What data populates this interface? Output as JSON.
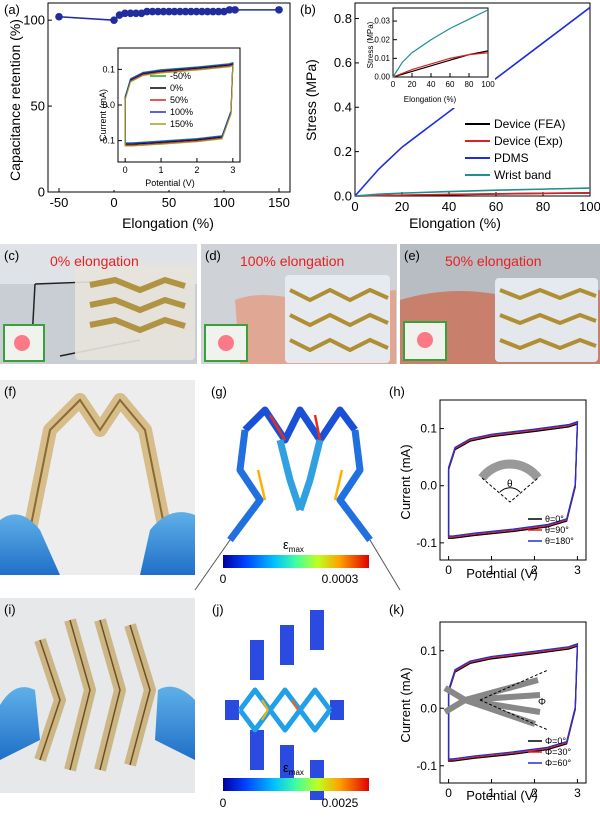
{
  "panels": {
    "a": {
      "label": "(a)",
      "chart_data": {
        "type": "scatter",
        "ylabel": "Capacitance retention (%)",
        "xlabel": "Elongation (%)",
        "xlim": [
          -60,
          160
        ],
        "ylim": [
          0,
          110
        ],
        "xticks": [
          -50,
          0,
          50,
          100,
          150
        ],
        "yticks": [
          0,
          50,
          100
        ],
        "x": [
          -50,
          0,
          5,
          10,
          15,
          20,
          25,
          30,
          35,
          40,
          45,
          50,
          55,
          60,
          65,
          70,
          75,
          80,
          85,
          90,
          95,
          100,
          105,
          110,
          150
        ],
        "y": [
          102,
          100,
          103,
          104,
          104,
          104,
          104,
          105,
          105,
          105,
          105,
          105,
          105,
          105,
          105,
          105,
          105,
          105,
          105,
          105,
          105,
          105,
          106,
          106,
          106
        ],
        "color": "#1f2d9e",
        "inset": {
          "xlabel": "Potential (V)",
          "ylabel": "Current (mA)",
          "xticks": [
            0,
            1,
            2,
            3
          ],
          "yticks": [
            -0.1,
            0.0,
            0.1
          ],
          "xlim": [
            -0.2,
            3.2
          ],
          "ylim": [
            -0.16,
            0.16
          ],
          "legend": [
            "-50%",
            "0%",
            "50%",
            "100%",
            "150%"
          ],
          "legend_colors": [
            "#2e9e2e",
            "#000000",
            "#e02020",
            "#1f2de0",
            "#a0a020"
          ]
        }
      }
    },
    "b": {
      "label": "(b)",
      "chart_data": {
        "type": "line",
        "ylabel": "Stress (MPa)",
        "xlabel": "Elongation (%)",
        "xlim": [
          0,
          100
        ],
        "ylim": [
          0,
          0.87
        ],
        "xticks": [
          0,
          20,
          40,
          60,
          80,
          100
        ],
        "yticks": [
          0.0,
          0.2,
          0.4,
          0.6,
          0.8
        ],
        "series": [
          {
            "name": "Device (FEA)",
            "color": "#000000",
            "x": [
              0,
              20,
              40,
              60,
              80,
              100
            ],
            "y": [
              0,
              0.003,
              0.006,
              0.009,
              0.012,
              0.014
            ]
          },
          {
            "name": "Device (Exp)",
            "color": "#e02020",
            "x": [
              0,
              20,
              40,
              60,
              80,
              100
            ],
            "y": [
              0,
              0.004,
              0.007,
              0.01,
              0.012,
              0.013
            ]
          },
          {
            "name": "PDMS",
            "color": "#1f2de0",
            "x": [
              0,
              10,
              20,
              30,
              40,
              50,
              60,
              70,
              80,
              90,
              100
            ],
            "y": [
              0,
              0.12,
              0.22,
              0.3,
              0.38,
              0.46,
              0.53,
              0.61,
              0.69,
              0.77,
              0.85
            ]
          },
          {
            "name": "Wrist band",
            "color": "#1e9090",
            "x": [
              0,
              10,
              20,
              40,
              60,
              80,
              100
            ],
            "y": [
              0,
              0.008,
              0.013,
              0.02,
              0.026,
              0.031,
              0.036
            ]
          }
        ],
        "inset": {
          "xlabel": "Elongation (%)",
          "ylabel": "Stress (MPa)",
          "xticks": [
            0,
            20,
            40,
            60,
            80,
            100
          ],
          "yticks": [
            0.0,
            0.01,
            0.02,
            0.03
          ],
          "ylim": [
            0,
            0.037
          ]
        }
      }
    },
    "c": {
      "label": "(c)",
      "caption": "0% elongation"
    },
    "d": {
      "label": "(d)",
      "caption": "100% elongation"
    },
    "e": {
      "label": "(e)",
      "caption": "50% elongation"
    },
    "f": {
      "label": "(f)"
    },
    "g": {
      "label": "(g)",
      "colorbar_title": "ε",
      "colorbar_sub": "max",
      "cb_min": "0",
      "cb_max": "0.0003"
    },
    "h": {
      "label": "(h)",
      "chart_data": {
        "type": "line",
        "xlabel": "Potential (V)",
        "ylabel": "Current (mA)",
        "xticks": [
          0,
          1,
          2,
          3
        ],
        "yticks": [
          -0.1,
          0.0,
          0.1
        ],
        "xlim": [
          -0.2,
          3.2
        ],
        "ylim": [
          -0.13,
          0.15
        ],
        "legend": [
          "θ=0°",
          "θ=90°",
          "θ=180°"
        ],
        "legend_colors": [
          "#000000",
          "#e02020",
          "#1f2de0"
        ],
        "angle_symbol": "θ"
      }
    },
    "i": {
      "label": "(i)"
    },
    "j": {
      "label": "(j)",
      "colorbar_title": "ε",
      "colorbar_sub": "max",
      "cb_min": "0",
      "cb_max": "0.0025"
    },
    "k": {
      "label": "(k)",
      "chart_data": {
        "type": "line",
        "xlabel": "Potential (V)",
        "ylabel": "Current (mA)",
        "xticks": [
          0,
          1,
          2,
          3
        ],
        "yticks": [
          -0.1,
          0.0,
          0.1
        ],
        "xlim": [
          -0.2,
          3.2
        ],
        "ylim": [
          -0.13,
          0.15
        ],
        "legend": [
          "Φ=0°",
          "Φ=30°",
          "Φ=60°"
        ],
        "legend_colors": [
          "#000000",
          "#e02020",
          "#1f2de0"
        ],
        "angle_symbol": "Φ"
      }
    }
  }
}
